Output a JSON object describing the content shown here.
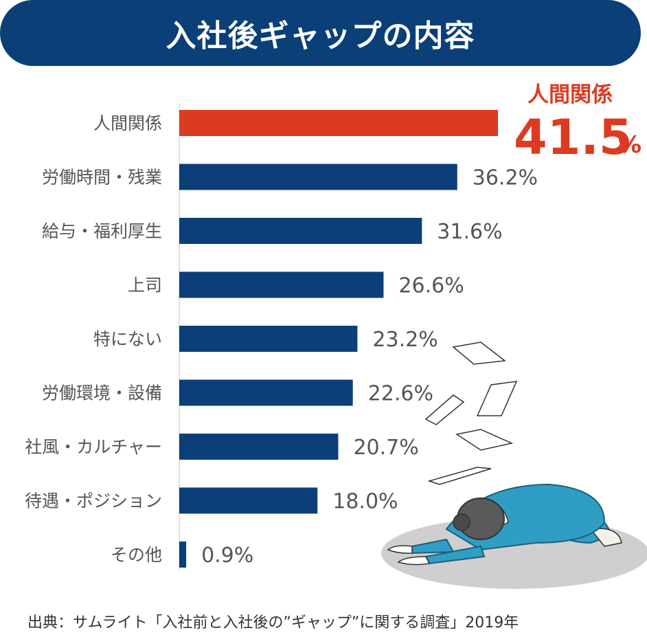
{
  "chart_data": {
    "type": "bar",
    "orientation": "horizontal",
    "title": "入社後ギャップの内容",
    "categories": [
      "人間関係",
      "労働時間・残業",
      "給与・福利厚生",
      "上司",
      "特にない",
      "労働環境・設備",
      "社風・カルチャー",
      "待遇・ポジション",
      "その他"
    ],
    "values": [
      41.5,
      36.2,
      31.6,
      26.6,
      23.2,
      22.6,
      20.7,
      18.0,
      0.9
    ],
    "value_labels": [
      "",
      "36.2%",
      "31.6%",
      "26.6%",
      "23.2%",
      "22.6%",
      "20.7%",
      "18.0%",
      "0.9%"
    ],
    "highlight": {
      "label": "人間関係",
      "value": "41.5",
      "unit": "%"
    },
    "xlim": [
      0,
      45
    ],
    "grid": false,
    "legend": "none"
  },
  "colors": {
    "title_bg": "#0a3f78",
    "bar": "#0c3f78",
    "highlight_bar": "#dc3b22",
    "label_text": "#555555",
    "value_text": "#555555",
    "highlight_text": "#dc3b22"
  },
  "illustration": "stressed-employee-bowing-with-flying-papers",
  "source": "出典：サムライト「入社前と入社後の”ギャップ”に関する調査」2019年"
}
